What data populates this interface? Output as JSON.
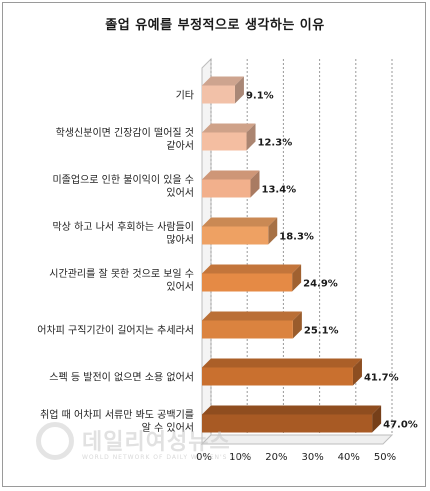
{
  "chart_data": {
    "type": "bar",
    "orientation": "horizontal",
    "title": "졸업 유예를 부정적으로 생각하는 이유",
    "categories": [
      "기타",
      "학생신분이면 긴장감이 떨어질 것 같아서",
      "미졸업으로 인한 불이익이 있을 수 있어서",
      "막상 하고 나서 후회하는 사람들이 많아서",
      "시간관리를 잘 못한 것으로 보일 수 있어서",
      "어차피 구직기간이 길어지는 추세라서",
      "스펙 등 발전이 없으면 소용 없어서",
      "취업 때 어차피 서류만 봐도 공백기를 알 수 있어서"
    ],
    "category_lines": [
      [
        "기타"
      ],
      [
        "학생신분이면 긴장감이 떨어질 것",
        "같아서"
      ],
      [
        "미졸업으로 인한 불이익이 있을 수",
        "있어서"
      ],
      [
        "막상 하고 나서 후회하는 사람들이",
        "많아서"
      ],
      [
        "시간관리를 잘 못한 것으로 보일 수",
        "있어서"
      ],
      [
        "어차피 구직기간이 길어지는 추세라서"
      ],
      [
        "스펙 등 발전이 없으면 소용 없어서"
      ],
      [
        "취업 때 어차피 서류만 봐도 공백기를",
        "알 수 있어서"
      ]
    ],
    "values": [
      9.1,
      12.3,
      13.4,
      18.3,
      24.9,
      25.1,
      41.7,
      47.0
    ],
    "value_labels": [
      "9.1%",
      "12.3%",
      "13.4%",
      "18.3%",
      "24.9%",
      "25.1%",
      "41.7%",
      "47.0%"
    ],
    "xlim": [
      0,
      50
    ],
    "xticks": [
      "0%",
      "10%",
      "20%",
      "30%",
      "40%",
      "50%"
    ],
    "xlabel": "",
    "ylabel": "",
    "grid": "vertical dashed",
    "legend": "none",
    "bar_colors": [
      "#f2c1a8",
      "#f4bea1",
      "#f2b08c",
      "#eea163",
      "#e58a45",
      "#db833f",
      "#c9702f",
      "#a85a24"
    ],
    "style": "3d"
  },
  "watermark": {
    "text": "데일리여성뉴스",
    "subtext": "WORLD NETWORK OF DAILY WOMEN'S NEWS"
  }
}
